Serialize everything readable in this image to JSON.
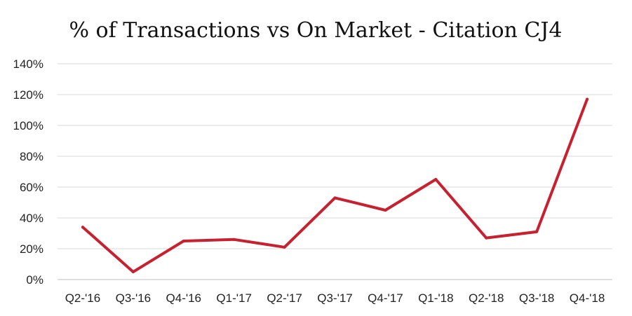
{
  "chart_data": {
    "type": "line",
    "title": "% of Transactions vs On Market - Citation CJ4",
    "xlabel": "",
    "ylabel": "",
    "categories": [
      "Q2-'16",
      "Q3-'16",
      "Q4-'16",
      "Q1-'17",
      "Q2-'17",
      "Q3-'17",
      "Q4-'17",
      "Q1-'18",
      "Q2-'18",
      "Q3-'18",
      "Q4-'18"
    ],
    "series": [
      {
        "values": [
          34,
          5,
          25,
          26,
          21,
          53,
          45,
          65,
          27,
          31,
          117
        ],
        "color": "#c8202f"
      }
    ],
    "ylim": [
      0,
      140
    ],
    "yticks": [
      0,
      20,
      40,
      60,
      80,
      100,
      120,
      140
    ],
    "ytick_labels": [
      "0%",
      "20%",
      "40%",
      "60%",
      "80%",
      "100%",
      "120%",
      "140%"
    ],
    "grid": true,
    "legend": "none"
  }
}
